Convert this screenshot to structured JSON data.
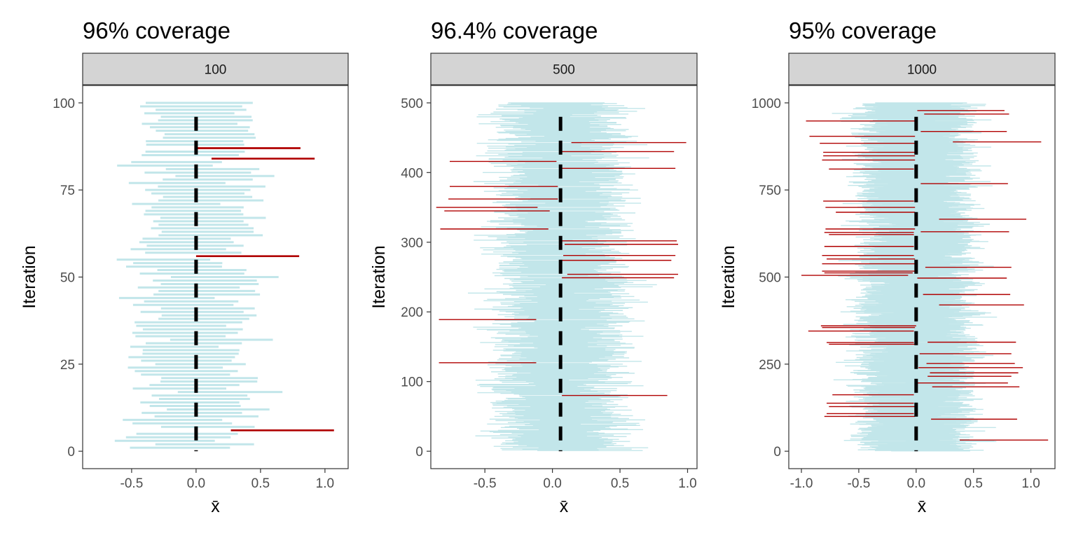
{
  "chart_data": [
    {
      "type": "interval",
      "title": "96% coverage",
      "strip": "100",
      "xlabel": "x̄",
      "ylabel": "Iteration",
      "xlim": [
        -0.88,
        1.18
      ],
      "ylim": [
        -5,
        105
      ],
      "xticks": [
        -0.5,
        0.0,
        0.5,
        1.0
      ],
      "xtick_labels": [
        "-0.5",
        "0.0",
        "0.5",
        "1.0"
      ],
      "yticks": [
        0,
        25,
        50,
        75,
        100
      ],
      "ytick_labels": [
        "0",
        "25",
        "50",
        "75",
        "100"
      ],
      "n_intervals": 100,
      "coverage": 0.96,
      "true_mean": 0.0,
      "half_width": 0.38,
      "seed": 11,
      "misses": [
        {
          "iteration": 6,
          "lower": 0.27,
          "upper": 1.07
        },
        {
          "iteration": 56,
          "lower": 0.0,
          "upper": 0.8
        },
        {
          "iteration": 84,
          "lower": 0.12,
          "upper": 0.92
        },
        {
          "iteration": 87,
          "lower": 0.0,
          "upper": 0.81
        }
      ]
    },
    {
      "type": "interval",
      "title": "96.4% coverage",
      "strip": "500",
      "xlabel": "x̄",
      "ylabel": "Iteration",
      "xlim": [
        -0.9,
        1.07
      ],
      "ylim": [
        -25,
        525
      ],
      "xticks": [
        -0.5,
        0.0,
        0.5,
        1.0
      ],
      "xtick_labels": [
        "-0.5",
        "0.0",
        "0.5",
        "1.0"
      ],
      "yticks": [
        0,
        100,
        200,
        300,
        400,
        500
      ],
      "ytick_labels": [
        "0",
        "100",
        "200",
        "300",
        "400",
        "500"
      ],
      "n_intervals": 500,
      "coverage": 0.964,
      "true_mean": 0.06,
      "half_width": 0.38,
      "seed": 23,
      "misses": [
        {
          "iteration": 80,
          "lower": 0.07,
          "upper": 0.85
        },
        {
          "iteration": 127,
          "lower": -0.84,
          "upper": -0.12
        },
        {
          "iteration": 189,
          "lower": -0.84,
          "upper": -0.12
        },
        {
          "iteration": 249,
          "lower": 0.07,
          "upper": 0.9
        },
        {
          "iteration": 254,
          "lower": 0.11,
          "upper": 0.93
        },
        {
          "iteration": 274,
          "lower": 0.07,
          "upper": 0.88
        },
        {
          "iteration": 281,
          "lower": 0.08,
          "upper": 0.91
        },
        {
          "iteration": 297,
          "lower": 0.09,
          "upper": 0.93
        },
        {
          "iteration": 302,
          "lower": 0.07,
          "upper": 0.92
        },
        {
          "iteration": 319,
          "lower": -0.83,
          "upper": -0.03
        },
        {
          "iteration": 345,
          "lower": -0.8,
          "upper": -0.02
        },
        {
          "iteration": 350,
          "lower": -0.86,
          "upper": -0.11
        },
        {
          "iteration": 362,
          "lower": -0.77,
          "upper": 0.04
        },
        {
          "iteration": 380,
          "lower": -0.76,
          "upper": 0.04
        },
        {
          "iteration": 406,
          "lower": 0.07,
          "upper": 0.91
        },
        {
          "iteration": 416,
          "lower": -0.76,
          "upper": 0.03
        },
        {
          "iteration": 430,
          "lower": 0.07,
          "upper": 0.9
        },
        {
          "iteration": 443,
          "lower": 0.14,
          "upper": 0.99
        }
      ]
    },
    {
      "type": "interval",
      "title": "95% coverage",
      "strip": "1000",
      "xlabel": "x̄",
      "ylabel": "Iteration",
      "xlim": [
        -1.11,
        1.21
      ],
      "ylim": [
        -50,
        1050
      ],
      "xticks": [
        -1.0,
        -0.5,
        0.0,
        0.5,
        1.0
      ],
      "xtick_labels": [
        "-1.0",
        "-0.5",
        "0.0",
        "0.5",
        "1.0"
      ],
      "yticks": [
        0,
        250,
        500,
        750,
        1000
      ],
      "ytick_labels": [
        "0",
        "250",
        "500",
        "750",
        "1000"
      ],
      "n_intervals": 1000,
      "coverage": 0.95,
      "true_mean": 0.0,
      "half_width": 0.38,
      "seed": 37,
      "misses": [
        {
          "iteration": 32,
          "lower": 0.38,
          "upper": 1.15
        },
        {
          "iteration": 92,
          "lower": 0.13,
          "upper": 0.88
        },
        {
          "iteration": 100,
          "lower": -0.8,
          "upper": -0.01
        },
        {
          "iteration": 108,
          "lower": -0.78,
          "upper": -0.02
        },
        {
          "iteration": 128,
          "lower": -0.76,
          "upper": -0.01
        },
        {
          "iteration": 138,
          "lower": -0.78,
          "upper": -0.02
        },
        {
          "iteration": 162,
          "lower": -0.73,
          "upper": -0.02
        },
        {
          "iteration": 185,
          "lower": 0.14,
          "upper": 0.9
        },
        {
          "iteration": 196,
          "lower": 0.01,
          "upper": 0.8
        },
        {
          "iteration": 215,
          "lower": 0.1,
          "upper": 0.83
        },
        {
          "iteration": 225,
          "lower": 0.12,
          "upper": 0.89
        },
        {
          "iteration": 240,
          "lower": 0.02,
          "upper": 0.93
        },
        {
          "iteration": 252,
          "lower": 0.09,
          "upper": 0.86
        },
        {
          "iteration": 280,
          "lower": 0.03,
          "upper": 0.83
        },
        {
          "iteration": 307,
          "lower": -0.76,
          "upper": -0.01
        },
        {
          "iteration": 312,
          "lower": -0.78,
          "upper": -0.02
        },
        {
          "iteration": 313,
          "lower": 0.1,
          "upper": 0.87
        },
        {
          "iteration": 345,
          "lower": -0.94,
          "upper": -0.02
        },
        {
          "iteration": 355,
          "lower": -0.82,
          "upper": -0.01
        },
        {
          "iteration": 360,
          "lower": -0.83,
          "upper": 0.0
        },
        {
          "iteration": 420,
          "lower": 0.2,
          "upper": 0.94
        },
        {
          "iteration": 450,
          "lower": 0.06,
          "upper": 0.82
        },
        {
          "iteration": 497,
          "lower": 0.01,
          "upper": 0.79
        },
        {
          "iteration": 505,
          "lower": -1.0,
          "upper": -0.07
        },
        {
          "iteration": 512,
          "lower": -0.8,
          "upper": -0.03
        },
        {
          "iteration": 517,
          "lower": -0.82,
          "upper": 0.0
        },
        {
          "iteration": 528,
          "lower": 0.08,
          "upper": 0.83
        },
        {
          "iteration": 538,
          "lower": -0.82,
          "upper": -0.01
        },
        {
          "iteration": 552,
          "lower": -0.78,
          "upper": -0.01
        },
        {
          "iteration": 562,
          "lower": -0.82,
          "upper": -0.02
        },
        {
          "iteration": 588,
          "lower": -0.8,
          "upper": -0.02
        },
        {
          "iteration": 622,
          "lower": -0.76,
          "upper": -0.02
        },
        {
          "iteration": 628,
          "lower": -0.8,
          "upper": -0.02
        },
        {
          "iteration": 630,
          "lower": 0.04,
          "upper": 0.81
        },
        {
          "iteration": 638,
          "lower": -0.79,
          "upper": -0.01
        },
        {
          "iteration": 666,
          "lower": 0.2,
          "upper": 0.96
        },
        {
          "iteration": 686,
          "lower": -0.7,
          "upper": -0.01
        },
        {
          "iteration": 700,
          "lower": -0.79,
          "upper": -0.01
        },
        {
          "iteration": 718,
          "lower": -0.81,
          "upper": -0.02
        },
        {
          "iteration": 768,
          "lower": 0.04,
          "upper": 0.8
        },
        {
          "iteration": 810,
          "lower": -0.76,
          "upper": -0.02
        },
        {
          "iteration": 836,
          "lower": -0.82,
          "upper": -0.01
        },
        {
          "iteration": 848,
          "lower": -0.81,
          "upper": -0.01
        },
        {
          "iteration": 858,
          "lower": -0.81,
          "upper": -0.01
        },
        {
          "iteration": 884,
          "lower": -0.84,
          "upper": -0.01
        },
        {
          "iteration": 888,
          "lower": 0.32,
          "upper": 1.09
        },
        {
          "iteration": 904,
          "lower": -0.93,
          "upper": -0.01
        },
        {
          "iteration": 918,
          "lower": 0.04,
          "upper": 0.79
        },
        {
          "iteration": 948,
          "lower": -0.96,
          "upper": -0.01
        },
        {
          "iteration": 968,
          "lower": 0.07,
          "upper": 0.81
        },
        {
          "iteration": 978,
          "lower": 0.01,
          "upper": 0.77
        }
      ]
    }
  ],
  "colors": {
    "covered": "#c2e6ea",
    "missed": "#b00000",
    "reference_line": "#000000",
    "strip_fill": "#d4d4d4",
    "panel_border": "#333333"
  }
}
